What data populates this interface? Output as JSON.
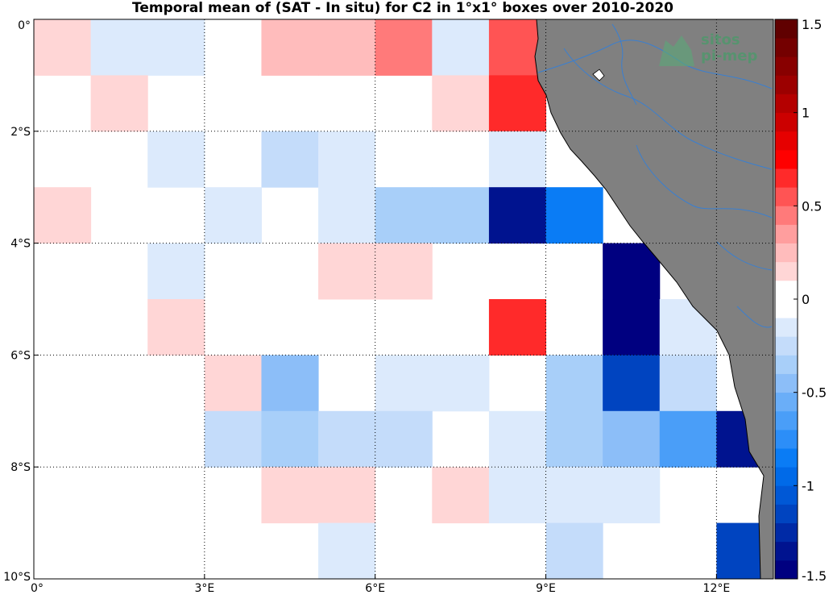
{
  "title": "Temporal mean of (SAT - In situ) for C2 in 1°x1° boxes over 2010-2020",
  "map": {
    "lon_range": [
      0,
      13
    ],
    "lat_range": [
      -10,
      0
    ],
    "lon_ticks": [
      {
        "value": 0,
        "label": "0°"
      },
      {
        "value": 3,
        "label": "3°E"
      },
      {
        "value": 6,
        "label": "6°E"
      },
      {
        "value": 9,
        "label": "9°E"
      },
      {
        "value": 12,
        "label": "12°E"
      }
    ],
    "lat_ticks": [
      {
        "value": 0,
        "label": "0°"
      },
      {
        "value": -2,
        "label": "2°S"
      },
      {
        "value": -4,
        "label": "4°S"
      },
      {
        "value": -6,
        "label": "6°S"
      },
      {
        "value": -8,
        "label": "8°S"
      },
      {
        "value": -10,
        "label": "10°S"
      }
    ],
    "land_color": "#808080",
    "river_color": "#3a7fd0",
    "grid": true
  },
  "chart_data": {
    "type": "heatmap",
    "cell_size_deg": 1,
    "cells": [
      {
        "lon": 0,
        "lat": 0,
        "value": 0.15
      },
      {
        "lon": 1,
        "lat": 0,
        "value": -0.15
      },
      {
        "lon": 2,
        "lat": 0,
        "value": -0.15
      },
      {
        "lon": 4,
        "lat": 0,
        "value": 0.25
      },
      {
        "lon": 5,
        "lat": 0,
        "value": 0.25
      },
      {
        "lon": 6,
        "lat": 0,
        "value": 0.4
      },
      {
        "lon": 7,
        "lat": 0,
        "value": -0.15
      },
      {
        "lon": 8,
        "lat": 0,
        "value": 0.5
      },
      {
        "lon": 1,
        "lat": -1,
        "value": 0.15
      },
      {
        "lon": 7,
        "lat": -1,
        "value": 0.15
      },
      {
        "lon": 8,
        "lat": -1,
        "value": 0.6
      },
      {
        "lon": 2,
        "lat": -2,
        "value": -0.15
      },
      {
        "lon": 4,
        "lat": -2,
        "value": -0.25
      },
      {
        "lon": 5,
        "lat": -2,
        "value": -0.15
      },
      {
        "lon": 8,
        "lat": -2,
        "value": -0.15
      },
      {
        "lon": 0,
        "lat": -3,
        "value": 0.15
      },
      {
        "lon": 3,
        "lat": -3,
        "value": -0.15
      },
      {
        "lon": 5,
        "lat": -3,
        "value": -0.15
      },
      {
        "lon": 6,
        "lat": -3,
        "value": -0.35
      },
      {
        "lon": 7,
        "lat": -3,
        "value": -0.35
      },
      {
        "lon": 8,
        "lat": -3,
        "value": -1.35
      },
      {
        "lon": 9,
        "lat": -3,
        "value": -0.8
      },
      {
        "lon": 2,
        "lat": -4,
        "value": -0.15
      },
      {
        "lon": 5,
        "lat": -4,
        "value": 0.15
      },
      {
        "lon": 6,
        "lat": -4,
        "value": 0.15
      },
      {
        "lon": 10,
        "lat": -4,
        "value": -1.5
      },
      {
        "lon": 2,
        "lat": -5,
        "value": 0.15
      },
      {
        "lon": 8,
        "lat": -5,
        "value": 0.6
      },
      {
        "lon": 10,
        "lat": -5,
        "value": -1.5
      },
      {
        "lon": 11,
        "lat": -5,
        "value": -0.15
      },
      {
        "lon": 3,
        "lat": -6,
        "value": 0.15
      },
      {
        "lon": 4,
        "lat": -6,
        "value": -0.5
      },
      {
        "lon": 6,
        "lat": -6,
        "value": -0.15
      },
      {
        "lon": 7,
        "lat": -6,
        "value": -0.15
      },
      {
        "lon": 9,
        "lat": -6,
        "value": -0.35
      },
      {
        "lon": 10,
        "lat": -6,
        "value": -1.15
      },
      {
        "lon": 11,
        "lat": -6,
        "value": -0.25
      },
      {
        "lon": 3,
        "lat": -7,
        "value": -0.25
      },
      {
        "lon": 4,
        "lat": -7,
        "value": -0.35
      },
      {
        "lon": 5,
        "lat": -7,
        "value": -0.25
      },
      {
        "lon": 6,
        "lat": -7,
        "value": -0.25
      },
      {
        "lon": 8,
        "lat": -7,
        "value": -0.15
      },
      {
        "lon": 9,
        "lat": -7,
        "value": -0.35
      },
      {
        "lon": 10,
        "lat": -7,
        "value": -0.5
      },
      {
        "lon": 11,
        "lat": -7,
        "value": -0.7
      },
      {
        "lon": 12,
        "lat": -7,
        "value": -1.35
      },
      {
        "lon": 4,
        "lat": -8,
        "value": 0.15
      },
      {
        "lon": 5,
        "lat": -8,
        "value": 0.15
      },
      {
        "lon": 7,
        "lat": -8,
        "value": 0.15
      },
      {
        "lon": 8,
        "lat": -8,
        "value": -0.15
      },
      {
        "lon": 9,
        "lat": -8,
        "value": -0.15
      },
      {
        "lon": 10,
        "lat": -8,
        "value": -0.15
      },
      {
        "lon": 5,
        "lat": -9,
        "value": -0.15
      },
      {
        "lon": 9,
        "lat": -9,
        "value": -0.25
      },
      {
        "lon": 12,
        "lat": -9,
        "value": -1.1
      }
    ],
    "colorbar": {
      "range": [
        -1.5,
        1.5
      ],
      "ticks": [
        {
          "value": 1.5,
          "label": "1.5"
        },
        {
          "value": 1,
          "label": "1"
        },
        {
          "value": 0.5,
          "label": "0.5"
        },
        {
          "value": 0,
          "label": "0"
        },
        {
          "value": -0.5,
          "label": "-0.5"
        },
        {
          "value": -1,
          "label": "-1"
        },
        {
          "value": -1.5,
          "label": "-1.5"
        }
      ],
      "colors": [
        "#000080",
        "#00138f",
        "#002aa6",
        "#0044c0",
        "#0058d6",
        "#006ae8",
        "#0a7cf5",
        "#2c8ef8",
        "#4a9ef8",
        "#6aaef8",
        "#8cbef8",
        "#a8cff9",
        "#c4dcfa",
        "#dceafc",
        "#ffffff",
        "#ffffff",
        "#ffd6d6",
        "#ffbcbc",
        "#ff9e9e",
        "#ff7a7a",
        "#ff5454",
        "#ff2a2a",
        "#ff0000",
        "#e60000",
        "#cc0000",
        "#b40000",
        "#9c0000",
        "#880000",
        "#740000",
        "#600000"
      ]
    },
    "xlabel": "",
    "ylabel": ""
  },
  "logo": {
    "line1": "sitos",
    "line2": "pi-mep"
  }
}
